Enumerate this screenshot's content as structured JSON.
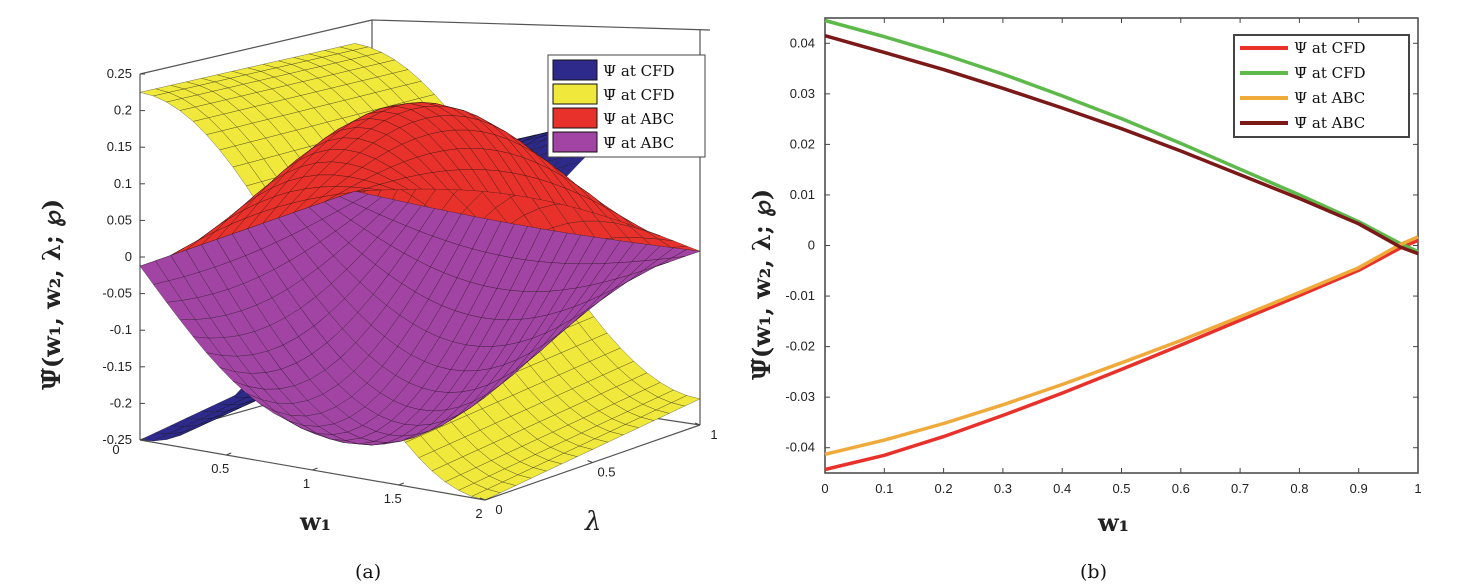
{
  "chart_data": [
    {
      "id": "a",
      "type": "surface",
      "caption": "(a)",
      "xlabel": "w₁",
      "ylabel": "λ",
      "zlabel": "Ψ̃(w₁, w₂, λ; ℘)",
      "xlim": [
        0,
        2
      ],
      "ylim": [
        0,
        1
      ],
      "zlim": [
        -0.25,
        0.25
      ],
      "x_ticks": [
        "0",
        "0.5",
        "1",
        "1.5",
        "2"
      ],
      "y_ticks": [
        "0",
        "0.5",
        "1"
      ],
      "z_ticks": [
        "-0.25",
        "-0.2",
        "-0.15",
        "-0.1",
        "-0.05",
        "0",
        "0.05",
        "0.1",
        "0.15",
        "0.2",
        "0.25"
      ],
      "legend_position": "top-right",
      "series": [
        {
          "name": "Ψ at CFD",
          "color": "#2e2a8c"
        },
        {
          "name": "Ψ̄ at CFD",
          "color": "#f0e83a"
        },
        {
          "name": "Ψ at ABC",
          "color": "#e8312a"
        },
        {
          "name": "Ψ̄ at ABC",
          "color": "#a244a4"
        }
      ]
    },
    {
      "id": "b",
      "type": "line",
      "caption": "(b)",
      "xlabel": "w₁",
      "ylabel": "Ψ̃(w₁, w₂, λ; ℘)",
      "xlim": [
        0,
        1
      ],
      "ylim": [
        -0.045,
        0.045
      ],
      "x_ticks": [
        "0",
        "0.1",
        "0.2",
        "0.3",
        "0.4",
        "0.5",
        "0.6",
        "0.7",
        "0.8",
        "0.9",
        "1"
      ],
      "y_ticks": [
        "-0.04",
        "-0.03",
        "-0.02",
        "-0.01",
        "0",
        "0.01",
        "0.02",
        "0.03",
        "0.04"
      ],
      "legend_position": "top-right",
      "x": [
        0,
        0.1,
        0.2,
        0.3,
        0.4,
        0.5,
        0.6,
        0.7,
        0.8,
        0.9,
        0.97,
        1.0
      ],
      "series": [
        {
          "name": "Ψ at CFD",
          "color": "#e8312a",
          "values": [
            -0.0443,
            -0.0415,
            -0.0378,
            -0.0336,
            -0.0292,
            -0.0245,
            -0.0197,
            -0.0148,
            -0.0099,
            -0.0049,
            -0.0005,
            0.001
          ]
        },
        {
          "name": "Ψ̄ at CFD",
          "color": "#5db94a",
          "values": [
            0.0445,
            0.0413,
            0.0378,
            0.0339,
            0.0296,
            0.0251,
            0.0202,
            0.0151,
            0.01,
            0.0047,
            0.0004,
            -0.0012
          ]
        },
        {
          "name": "Ψ at ABC",
          "color": "#f0aa3c",
          "values": [
            -0.0413,
            -0.0385,
            -0.0352,
            -0.0315,
            -0.0275,
            -0.0232,
            -0.0188,
            -0.0141,
            -0.0093,
            -0.0044,
            0.0002,
            0.0017
          ]
        },
        {
          "name": "Ψ̄ at ABC",
          "color": "#7b1818",
          "values": [
            0.0415,
            0.0382,
            0.0348,
            0.0311,
            0.0272,
            0.0231,
            0.0187,
            0.014,
            0.0093,
            0.0043,
            -0.0003,
            -0.0016
          ]
        }
      ]
    }
  ]
}
